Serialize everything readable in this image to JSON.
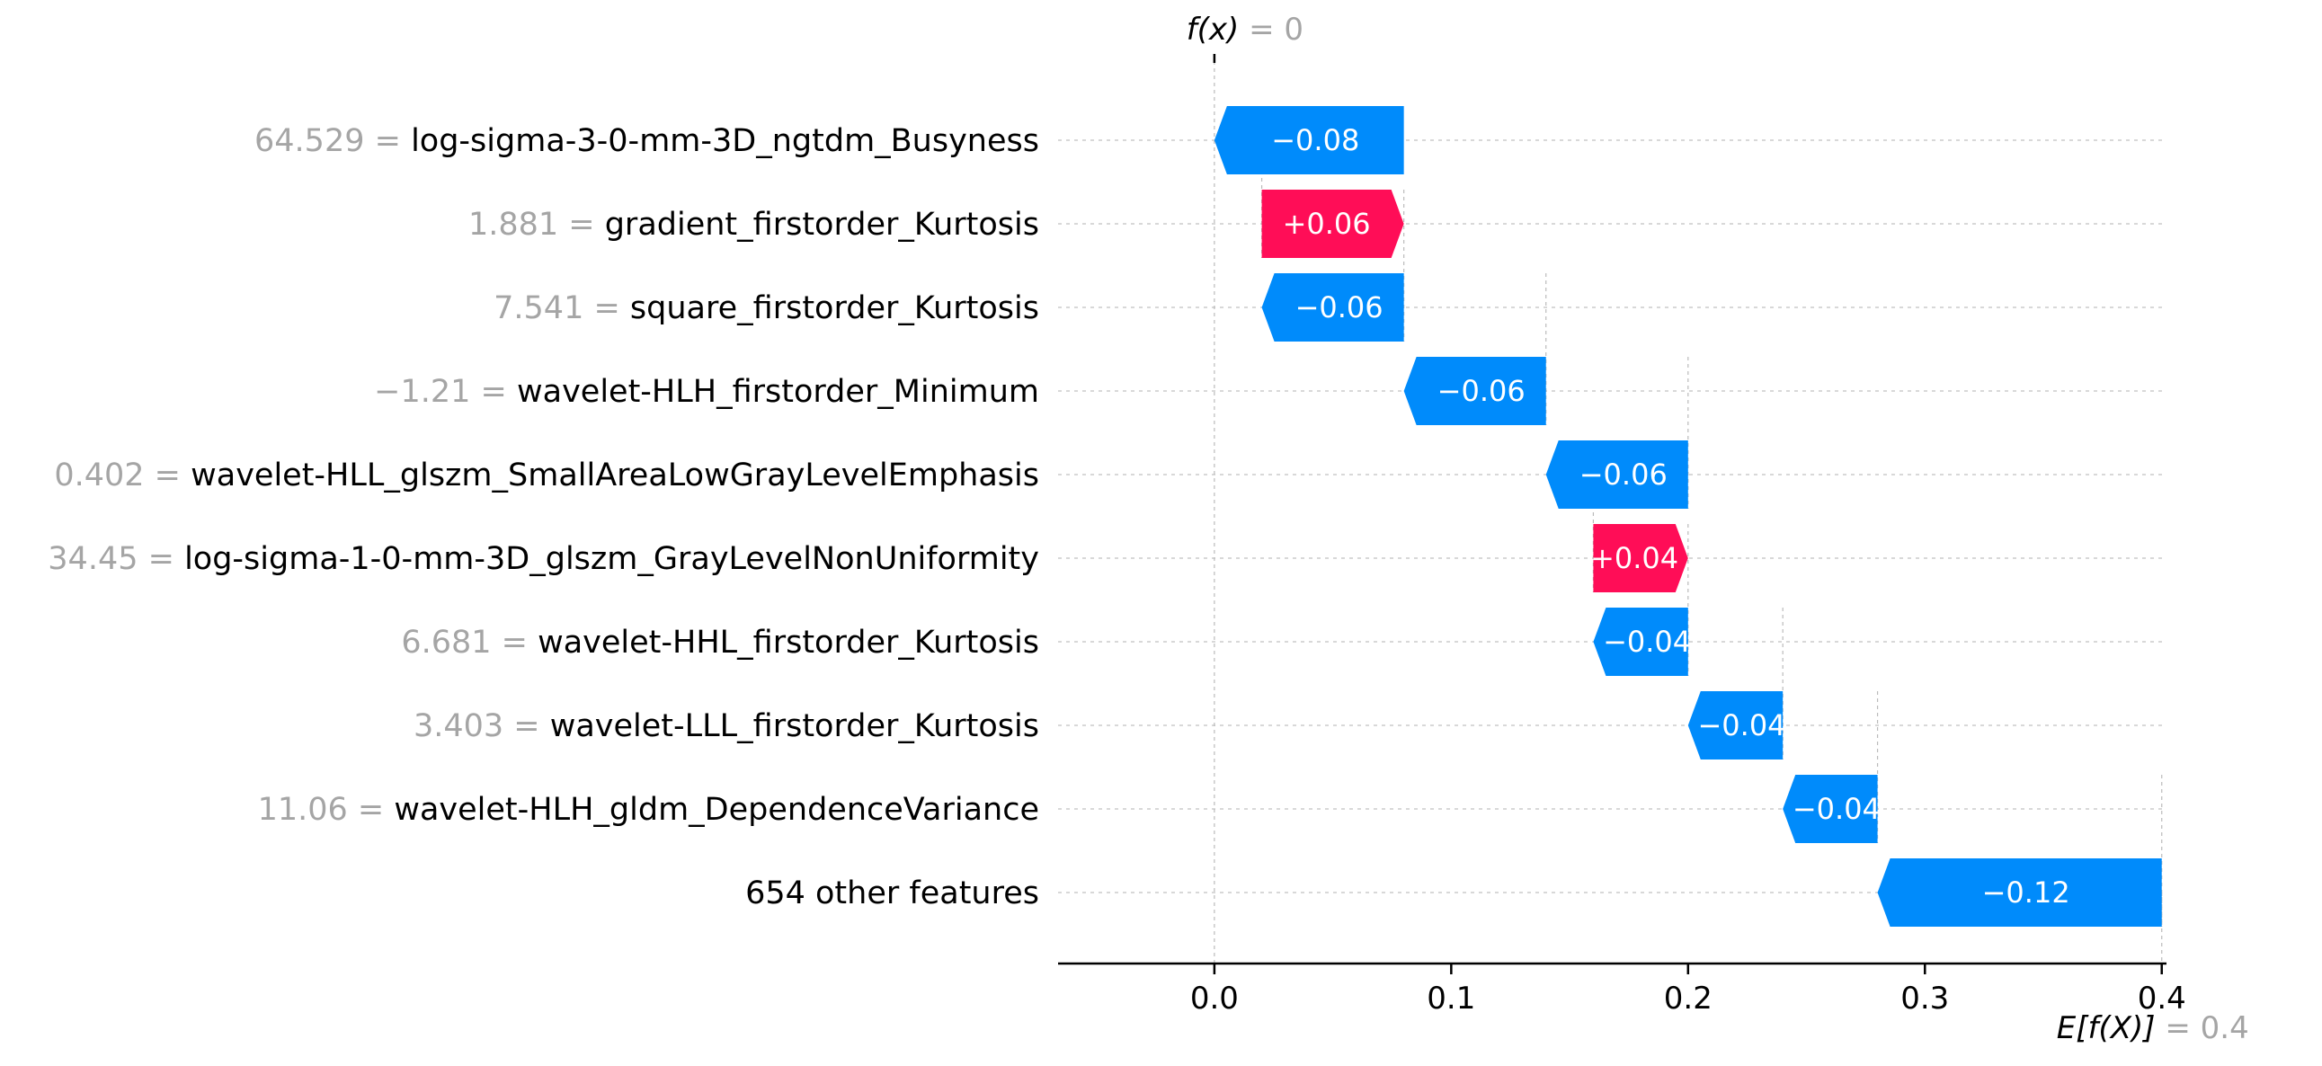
{
  "chart_data": {
    "type": "waterfall",
    "top_label": {
      "name": "f(x)",
      "eq": " = ",
      "value": "0"
    },
    "bottom_label": {
      "name": "E[f(X)]",
      "eq": " = ",
      "value": "0.4"
    },
    "base_value": 0.4,
    "output_value": 0.0,
    "xlim": [
      -0.066,
      0.402
    ],
    "xticks": [
      {
        "value": 0.0,
        "label": "0.0"
      },
      {
        "value": 0.1,
        "label": "0.1"
      },
      {
        "value": 0.2,
        "label": "0.2"
      },
      {
        "value": 0.3,
        "label": "0.3"
      },
      {
        "value": 0.4,
        "label": "0.4"
      }
    ],
    "colors": {
      "positive": "#ff0d57",
      "negative": "#008bfb"
    },
    "features": [
      {
        "value_text": "64.529",
        "name": "log-sigma-3-0-mm-3D_ngtdm_Busyness",
        "start": 0.08,
        "end": 0.0,
        "label": "−0.08"
      },
      {
        "value_text": "1.881",
        "name": "gradient_firstorder_Kurtosis",
        "start": 0.02,
        "end": 0.08,
        "label": "+0.06"
      },
      {
        "value_text": "7.541",
        "name": "square_firstorder_Kurtosis",
        "start": 0.08,
        "end": 0.02,
        "label": "−0.06"
      },
      {
        "value_text": "−1.21",
        "name": "wavelet-HLH_firstorder_Minimum",
        "start": 0.14,
        "end": 0.08,
        "label": "−0.06"
      },
      {
        "value_text": "0.402",
        "name": "wavelet-HLL_glszm_SmallAreaLowGrayLevelEmphasis",
        "start": 0.2,
        "end": 0.14,
        "label": "−0.06"
      },
      {
        "value_text": "34.45",
        "name": "log-sigma-1-0-mm-3D_glszm_GrayLevelNonUniformity",
        "start": 0.16,
        "end": 0.2,
        "label": "+0.04"
      },
      {
        "value_text": "6.681",
        "name": "wavelet-HHL_firstorder_Kurtosis",
        "start": 0.2,
        "end": 0.16,
        "label": "−0.04"
      },
      {
        "value_text": "3.403",
        "name": "wavelet-LLL_firstorder_Kurtosis",
        "start": 0.24,
        "end": 0.2,
        "label": "−0.04"
      },
      {
        "value_text": "11.06",
        "name": "wavelet-HLH_gldm_DependenceVariance",
        "start": 0.28,
        "end": 0.24,
        "label": "−0.04"
      },
      {
        "value_text": "",
        "name": "654 other features",
        "start": 0.4,
        "end": 0.28,
        "label": "−0.12"
      }
    ]
  }
}
